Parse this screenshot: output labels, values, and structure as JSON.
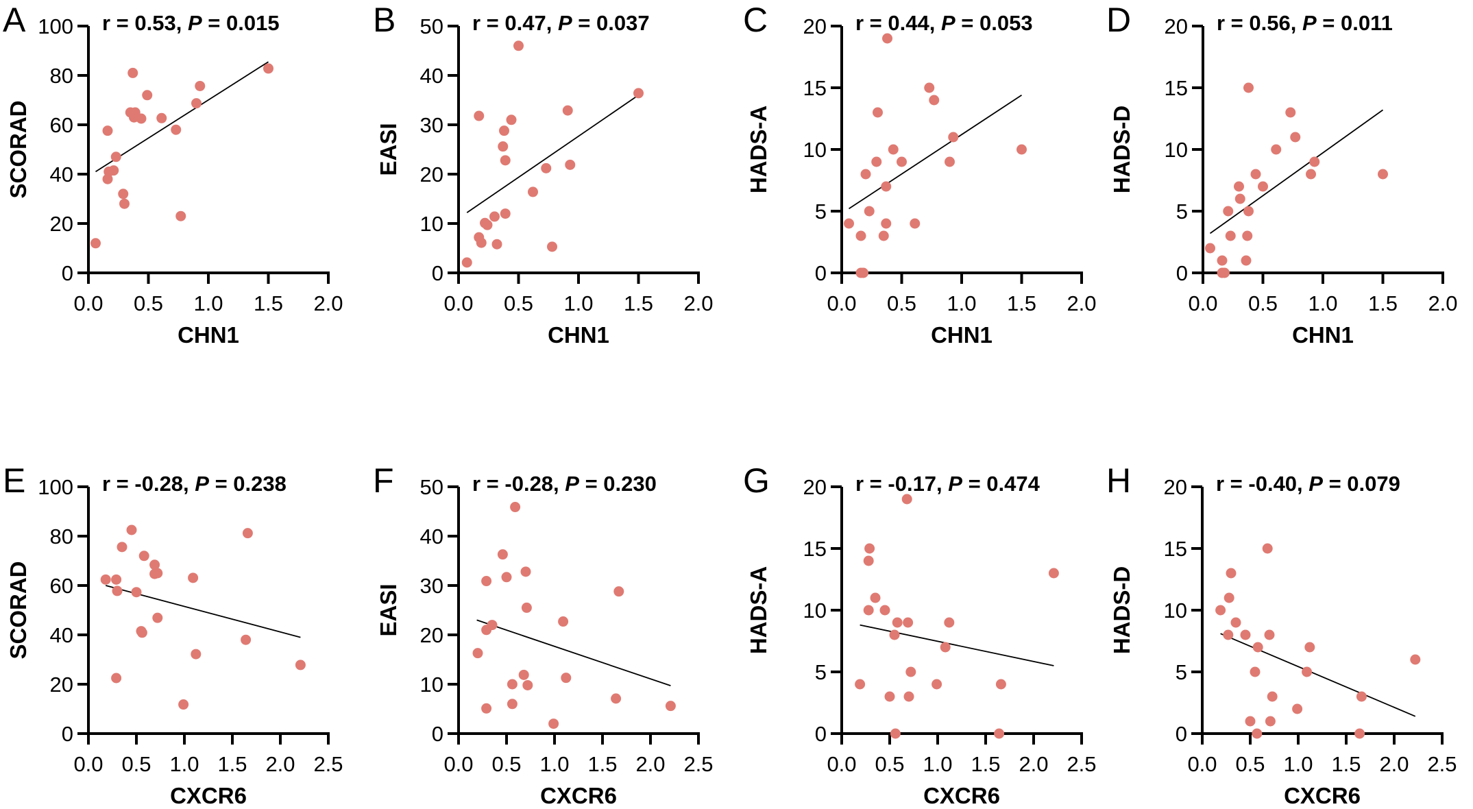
{
  "point_color": "#df7a72",
  "chart_data": [
    {
      "type": "scatter",
      "panel": "A",
      "r_text": "r = 0.53, ",
      "p_label": "P",
      "p_text": " = 0.015",
      "xlabel": "CHN1",
      "ylabel": "SCORAD",
      "xlim": [
        0,
        2
      ],
      "ylim": [
        0,
        100
      ],
      "xticks": [
        "0.0",
        "0.5",
        "1.0",
        "1.5",
        "2.0"
      ],
      "xtickvals": [
        0,
        0.5,
        1,
        1.5,
        2
      ],
      "yticks": [
        "0",
        "20",
        "40",
        "60",
        "80",
        "100"
      ],
      "ytickvals": [
        0,
        20,
        40,
        60,
        80,
        100
      ],
      "fit": [
        [
          0.06,
          41
        ],
        [
          1.5,
          85.5
        ]
      ],
      "points": [
        [
          0.06,
          12
        ],
        [
          0.16,
          57.6
        ],
        [
          0.16,
          38
        ],
        [
          0.17,
          41
        ],
        [
          0.21,
          41.5
        ],
        [
          0.23,
          47
        ],
        [
          0.29,
          32
        ],
        [
          0.3,
          28
        ],
        [
          0.37,
          81
        ],
        [
          0.35,
          65
        ],
        [
          0.39,
          65
        ],
        [
          0.38,
          63
        ],
        [
          0.44,
          62.5
        ],
        [
          0.49,
          72
        ],
        [
          0.61,
          62.7
        ],
        [
          0.73,
          58
        ],
        [
          0.77,
          23
        ],
        [
          0.9,
          68.7
        ],
        [
          0.93,
          75.7
        ],
        [
          1.5,
          82.8
        ]
      ]
    },
    {
      "type": "scatter",
      "panel": "B",
      "r_text": "r = 0.47, ",
      "p_label": "P",
      "p_text": " = 0.037",
      "xlabel": "CHN1",
      "ylabel": "EASI",
      "xlim": [
        0,
        2
      ],
      "ylim": [
        0,
        50
      ],
      "xticks": [
        "0.0",
        "0.5",
        "1.0",
        "1.5",
        "2.0"
      ],
      "xtickvals": [
        0,
        0.5,
        1,
        1.5,
        2
      ],
      "yticks": [
        "0",
        "10",
        "20",
        "30",
        "40",
        "50"
      ],
      "ytickvals": [
        0,
        10,
        20,
        30,
        40,
        50
      ],
      "fit": [
        [
          0.07,
          12.2
        ],
        [
          1.5,
          36
        ]
      ],
      "points": [
        [
          0.07,
          2.1
        ],
        [
          0.17,
          31.8
        ],
        [
          0.17,
          7.2
        ],
        [
          0.19,
          6.1
        ],
        [
          0.22,
          10.1
        ],
        [
          0.24,
          9.7
        ],
        [
          0.3,
          11.4
        ],
        [
          0.32,
          5.8
        ],
        [
          0.37,
          25.6
        ],
        [
          0.38,
          28.8
        ],
        [
          0.39,
          22.8
        ],
        [
          0.39,
          12
        ],
        [
          0.44,
          31
        ],
        [
          0.5,
          46
        ],
        [
          0.62,
          16.4
        ],
        [
          0.73,
          21.2
        ],
        [
          0.78,
          5.3
        ],
        [
          0.91,
          32.9
        ],
        [
          0.93,
          21.9
        ],
        [
          1.5,
          36.4
        ]
      ]
    },
    {
      "type": "scatter",
      "panel": "C",
      "r_text": "r = 0.44, ",
      "p_label": "P",
      "p_text": " = 0.053",
      "xlabel": "CHN1",
      "ylabel": "HADS-A",
      "xlim": [
        0,
        2
      ],
      "ylim": [
        0,
        20
      ],
      "xticks": [
        "0.0",
        "0.5",
        "1.0",
        "1.5",
        "2.0"
      ],
      "xtickvals": [
        0,
        0.5,
        1,
        1.5,
        2
      ],
      "yticks": [
        "0",
        "5",
        "10",
        "15",
        "20"
      ],
      "ytickvals": [
        0,
        5,
        10,
        15,
        20
      ],
      "fit": [
        [
          0.06,
          5.2
        ],
        [
          1.5,
          14.4
        ]
      ],
      "points": [
        [
          0.06,
          4
        ],
        [
          0.16,
          3
        ],
        [
          0.16,
          0
        ],
        [
          0.18,
          0
        ],
        [
          0.2,
          8
        ],
        [
          0.23,
          5
        ],
        [
          0.29,
          9
        ],
        [
          0.3,
          13
        ],
        [
          0.35,
          3
        ],
        [
          0.37,
          4
        ],
        [
          0.37,
          7
        ],
        [
          0.38,
          19
        ],
        [
          0.43,
          10
        ],
        [
          0.5,
          9
        ],
        [
          0.61,
          4
        ],
        [
          0.73,
          15
        ],
        [
          0.77,
          14
        ],
        [
          0.9,
          9
        ],
        [
          0.93,
          11
        ],
        [
          1.5,
          10
        ]
      ]
    },
    {
      "type": "scatter",
      "panel": "D",
      "r_text": "r = 0.56, ",
      "p_label": "P",
      "p_text": " = 0.011",
      "xlabel": "CHN1",
      "ylabel": "HADS-D",
      "xlim": [
        0,
        2
      ],
      "ylim": [
        0,
        20
      ],
      "xticks": [
        "0.0",
        "0.5",
        "1.0",
        "1.5",
        "2.0"
      ],
      "xtickvals": [
        0,
        0.5,
        1,
        1.5,
        2
      ],
      "yticks": [
        "0",
        "5",
        "10",
        "15",
        "20"
      ],
      "ytickvals": [
        0,
        5,
        10,
        15,
        20
      ],
      "fit": [
        [
          0.06,
          3.2
        ],
        [
          1.5,
          13.2
        ]
      ],
      "points": [
        [
          0.06,
          2
        ],
        [
          0.16,
          1
        ],
        [
          0.16,
          0
        ],
        [
          0.18,
          0
        ],
        [
          0.21,
          5
        ],
        [
          0.23,
          3
        ],
        [
          0.3,
          7
        ],
        [
          0.31,
          6
        ],
        [
          0.36,
          1
        ],
        [
          0.37,
          3
        ],
        [
          0.38,
          5
        ],
        [
          0.38,
          15
        ],
        [
          0.44,
          8
        ],
        [
          0.5,
          7
        ],
        [
          0.61,
          10
        ],
        [
          0.73,
          13
        ],
        [
          0.77,
          11
        ],
        [
          0.9,
          8
        ],
        [
          0.93,
          9
        ],
        [
          1.5,
          8
        ]
      ]
    },
    {
      "type": "scatter",
      "panel": "E",
      "r_text": "r = -0.28, ",
      "p_label": "P",
      "p_text": " = 0.238",
      "xlabel": "CXCR6",
      "ylabel": "SCORAD",
      "xlim": [
        0,
        2.5
      ],
      "ylim": [
        0,
        100
      ],
      "xticks": [
        "0.0",
        "0.5",
        "1.0",
        "1.5",
        "2.0",
        "2.5"
      ],
      "xtickvals": [
        0,
        0.5,
        1,
        1.5,
        2,
        2.5
      ],
      "yticks": [
        "0",
        "20",
        "40",
        "60",
        "80",
        "100"
      ],
      "ytickvals": [
        0,
        20,
        40,
        60,
        80,
        100
      ],
      "fit": [
        [
          0.18,
          60
        ],
        [
          2.21,
          39
        ]
      ],
      "points": [
        [
          0.18,
          62.4
        ],
        [
          0.29,
          62.4
        ],
        [
          0.3,
          57.8
        ],
        [
          0.29,
          22.5
        ],
        [
          0.35,
          75.6
        ],
        [
          0.45,
          82.5
        ],
        [
          0.5,
          57.3
        ],
        [
          0.56,
          40.9
        ],
        [
          0.55,
          41.5
        ],
        [
          0.58,
          72
        ],
        [
          0.69,
          68.4
        ],
        [
          0.69,
          64.7
        ],
        [
          0.72,
          65
        ],
        [
          0.72,
          46.9
        ],
        [
          0.99,
          11.8
        ],
        [
          1.09,
          63.1
        ],
        [
          1.12,
          32.2
        ],
        [
          1.64,
          38
        ],
        [
          1.66,
          81.2
        ],
        [
          2.21,
          27.8
        ]
      ]
    },
    {
      "type": "scatter",
      "panel": "F",
      "r_text": "r = -0.28, ",
      "p_label": "P",
      "p_text": " = 0.230",
      "xlabel": "CXCR6",
      "ylabel": "EASI",
      "xlim": [
        0,
        2.5
      ],
      "ylim": [
        0,
        50
      ],
      "xticks": [
        "0.0",
        "0.5",
        "1.0",
        "1.5",
        "2.0",
        "2.5"
      ],
      "xtickvals": [
        0,
        0.5,
        1,
        1.5,
        2,
        2.5
      ],
      "yticks": [
        "0",
        "10",
        "20",
        "30",
        "40",
        "50"
      ],
      "ytickvals": [
        0,
        10,
        20,
        30,
        40,
        50
      ],
      "fit": [
        [
          0.19,
          23
        ],
        [
          2.21,
          9.7
        ]
      ],
      "points": [
        [
          0.2,
          16.3
        ],
        [
          0.29,
          30.9
        ],
        [
          0.29,
          21
        ],
        [
          0.35,
          22
        ],
        [
          0.29,
          5.1
        ],
        [
          0.46,
          36.3
        ],
        [
          0.5,
          31.7
        ],
        [
          0.56,
          10
        ],
        [
          0.56,
          6
        ],
        [
          0.59,
          45.9
        ],
        [
          0.68,
          11.9
        ],
        [
          0.7,
          32.8
        ],
        [
          0.71,
          25.5
        ],
        [
          0.72,
          9.8
        ],
        [
          0.99,
          2
        ],
        [
          1.09,
          22.7
        ],
        [
          1.12,
          11.3
        ],
        [
          1.64,
          7.1
        ],
        [
          1.67,
          28.8
        ],
        [
          2.21,
          5.6
        ]
      ]
    },
    {
      "type": "scatter",
      "panel": "G",
      "r_text": "r = -0.17, ",
      "p_label": "P",
      "p_text": " = 0.474",
      "xlabel": "CXCR6",
      "ylabel": "HADS-A",
      "xlim": [
        0,
        2.5
      ],
      "ylim": [
        0,
        20
      ],
      "xticks": [
        "0.0",
        "0.5",
        "1.0",
        "1.5",
        "2.0",
        "2.5"
      ],
      "xtickvals": [
        0,
        0.5,
        1,
        1.5,
        2,
        2.5
      ],
      "yticks": [
        "0",
        "5",
        "10",
        "15",
        "20"
      ],
      "ytickvals": [
        0,
        5,
        10,
        15,
        20
      ],
      "fit": [
        [
          0.19,
          8.8
        ],
        [
          2.21,
          5.5
        ]
      ],
      "points": [
        [
          0.19,
          4
        ],
        [
          0.28,
          10
        ],
        [
          0.28,
          14
        ],
        [
          0.29,
          15
        ],
        [
          0.35,
          11
        ],
        [
          0.45,
          10
        ],
        [
          0.5,
          3
        ],
        [
          0.55,
          8
        ],
        [
          0.56,
          0
        ],
        [
          0.58,
          9
        ],
        [
          0.68,
          19
        ],
        [
          0.69,
          9
        ],
        [
          0.7,
          3
        ],
        [
          0.72,
          5
        ],
        [
          0.99,
          4
        ],
        [
          1.08,
          7
        ],
        [
          1.12,
          9
        ],
        [
          1.64,
          0
        ],
        [
          1.66,
          4
        ],
        [
          2.21,
          13
        ]
      ]
    },
    {
      "type": "scatter",
      "panel": "H",
      "r_text": "r = -0.40, ",
      "p_label": "P",
      "p_text": " = 0.079",
      "xlabel": "CXCR6",
      "ylabel": "HADS-D",
      "xlim": [
        0,
        2.5
      ],
      "ylim": [
        0,
        20
      ],
      "xticks": [
        "0.0",
        "0.5",
        "1.0",
        "1.5",
        "2.0",
        "2.5"
      ],
      "xtickvals": [
        0,
        0.5,
        1,
        1.5,
        2,
        2.5
      ],
      "yticks": [
        "0",
        "5",
        "10",
        "15",
        "20"
      ],
      "ytickvals": [
        0,
        5,
        10,
        15,
        20
      ],
      "fit": [
        [
          0.19,
          8.1
        ],
        [
          2.22,
          1.4
        ]
      ],
      "points": [
        [
          0.19,
          10
        ],
        [
          0.27,
          8
        ],
        [
          0.28,
          11
        ],
        [
          0.3,
          13
        ],
        [
          0.35,
          9
        ],
        [
          0.45,
          8
        ],
        [
          0.5,
          1
        ],
        [
          0.55,
          5
        ],
        [
          0.57,
          0
        ],
        [
          0.58,
          7
        ],
        [
          0.68,
          15
        ],
        [
          0.7,
          8
        ],
        [
          0.71,
          1
        ],
        [
          0.73,
          3
        ],
        [
          0.99,
          2
        ],
        [
          1.09,
          5
        ],
        [
          1.12,
          7
        ],
        [
          1.64,
          0
        ],
        [
          1.66,
          3
        ],
        [
          2.22,
          6
        ]
      ]
    }
  ]
}
